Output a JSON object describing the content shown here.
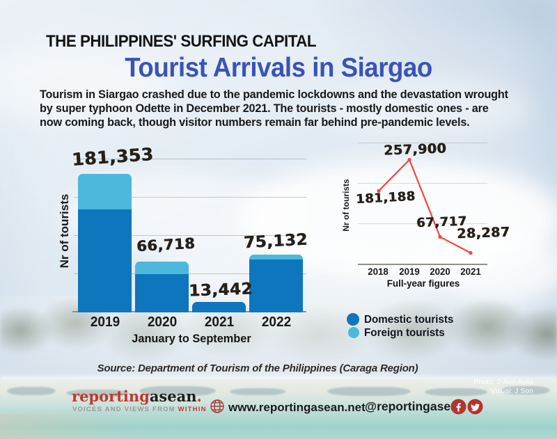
{
  "header": {
    "kicker": "THE PHILIPPINES' SURFING CAPITAL",
    "title": "Tourist Arrivals in Siargao",
    "intro_lines": [
      "Tourism in Siargao crashed due to the pandemic lockdowns and the devastation wrought",
      "by super typhoon Odette in December 2021. The tourists - mostly domestic ones - are",
      "now  coming back, though visitor numbers remain far behind pre-pandemic levels."
    ]
  },
  "chart_data": [
    {
      "type": "bar",
      "stacked": true,
      "period_label": "January to September",
      "ylabel": "Nr of tourists",
      "categories": [
        "2019",
        "2020",
        "2021",
        "2022"
      ],
      "totals": [
        181353,
        66718,
        13442,
        75132
      ],
      "total_labels": [
        "181,353",
        "66,718",
        "13,442",
        "75,132"
      ],
      "series": [
        {
          "name": "Domestic tourists",
          "color": "#0e76bc",
          "values": [
            135353,
            50018,
            13442,
            69132
          ]
        },
        {
          "name": "Foreign tourists",
          "color": "#4cb9dc",
          "values": [
            46000,
            16700,
            0,
            6000
          ]
        }
      ],
      "ylim": [
        0,
        200000
      ],
      "gridline_step": 50000,
      "grid": true
    },
    {
      "type": "line",
      "period_label": "Full-year figures",
      "ylabel": "Nr of tourists",
      "x": [
        "2018",
        "2019",
        "2020",
        "2021"
      ],
      "values": [
        181188,
        257900,
        67717,
        28287
      ],
      "value_labels": [
        "181,188",
        "257,900",
        "67,717",
        "28,287"
      ],
      "line_color": "#f2453d",
      "ylim": [
        0,
        300000
      ],
      "grid": true
    }
  ],
  "legend": {
    "items": [
      {
        "label": "Domestic tourists",
        "color": "#0e76bc"
      },
      {
        "label": "Foreign tourists",
        "color": "#4cb9dc"
      }
    ]
  },
  "source": "Source: Department of Tourism of the Philippines (Caraga Region)",
  "footer": {
    "logo": {
      "part1": "reporting",
      "part2": "asean",
      "dot": ".",
      "tagline_gray": "VOICES AND VIEWS FROM",
      "tagline_red": "WITHIN"
    },
    "website": "www.reportingasean.net",
    "handle": "@reportingasean",
    "credits": [
      "Photo: J-Ann Avila",
      "Visual: J Son"
    ]
  },
  "colors": {
    "title_blue": "#3a53b6",
    "domestic": "#0e76bc",
    "foreign": "#4cb9dc",
    "line_red": "#f2453d",
    "brand_red": "#b5342c",
    "logo_red": "#c1392e"
  }
}
